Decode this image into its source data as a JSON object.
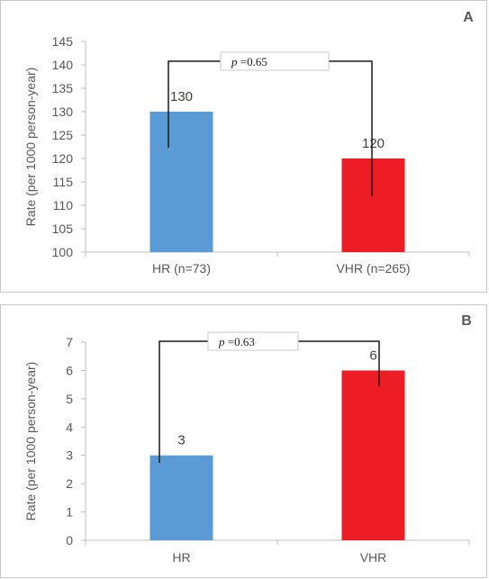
{
  "chart_data": [
    {
      "type": "bar",
      "panel_label": "A",
      "categories": [
        "HR (n=73)",
        "VHR (n=265)"
      ],
      "values": [
        130,
        120
      ],
      "data_labels": [
        "130",
        "120"
      ],
      "colors": [
        "#5b9bd5",
        "#ee1c25"
      ],
      "ylabel": "Rate (per 1000 person-year)",
      "ylim": [
        100,
        145
      ],
      "yticks": [
        100,
        105,
        110,
        115,
        120,
        125,
        130,
        135,
        140,
        145
      ],
      "grid": false,
      "annotation": {
        "p_symbol": "p",
        "p_value": " =0.65"
      }
    },
    {
      "type": "bar",
      "panel_label": "B",
      "categories": [
        "HR",
        "VHR"
      ],
      "values": [
        3,
        6
      ],
      "data_labels": [
        "3",
        "6"
      ],
      "colors": [
        "#5b9bd5",
        "#ee1c25"
      ],
      "ylabel": "Rate (per 1000 person-year)",
      "ylim": [
        0,
        7
      ],
      "yticks": [
        0,
        1,
        2,
        3,
        4,
        5,
        6,
        7
      ],
      "grid": false,
      "annotation": {
        "p_symbol": "p",
        "p_value": " =0.63"
      }
    }
  ]
}
